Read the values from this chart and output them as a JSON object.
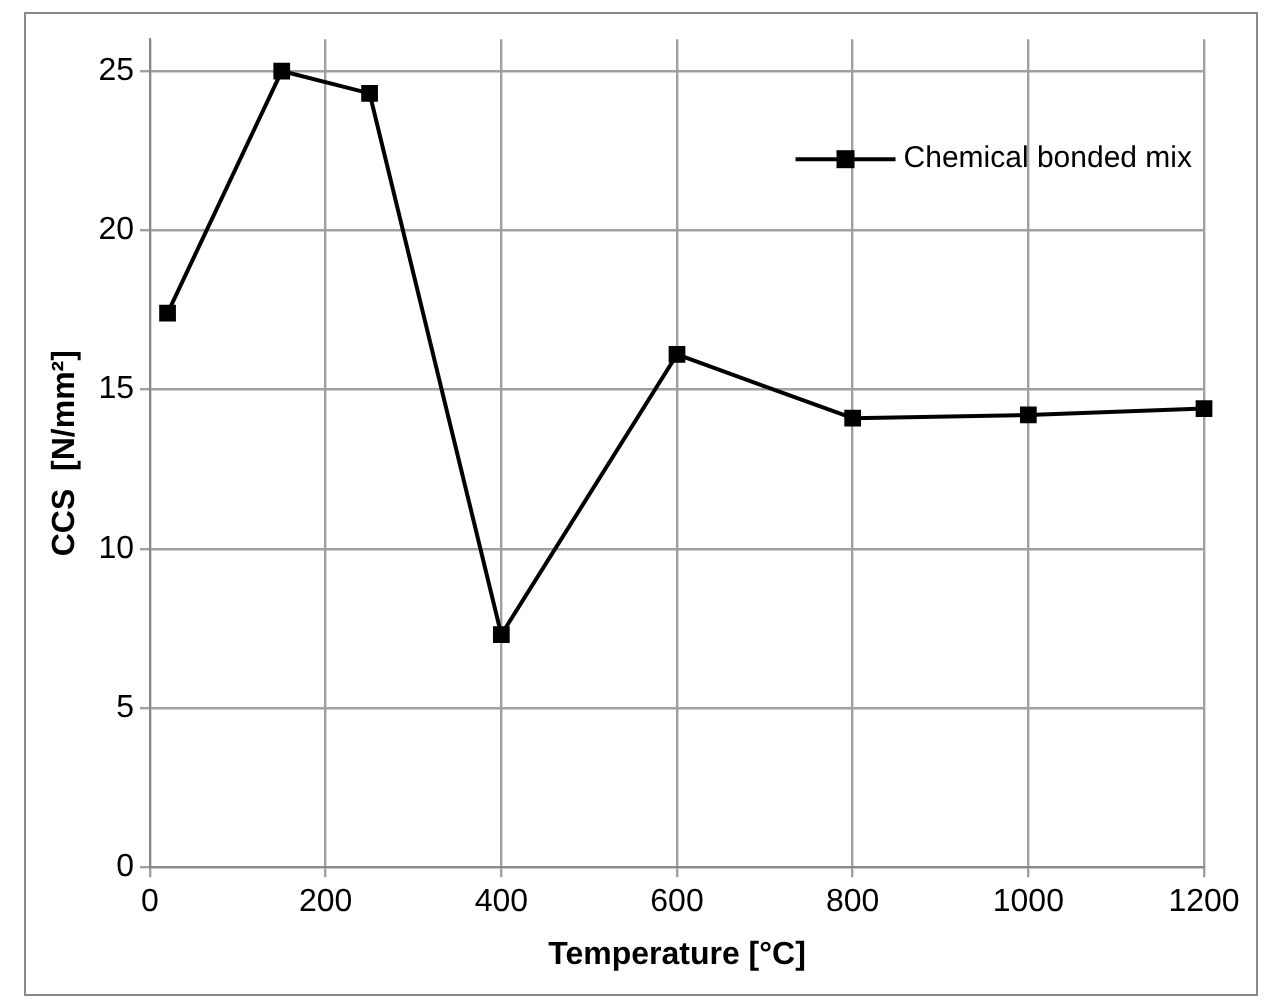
{
  "chart_data": {
    "type": "line",
    "xlabel": "Temperature [°C]",
    "ylabel": "CCS  [N/mm²]",
    "x": [
      20,
      150,
      250,
      400,
      600,
      800,
      1000,
      1200
    ],
    "series": [
      {
        "name": "Chemical bonded mix",
        "color": "#000000",
        "values": [
          17.4,
          25.0,
          24.3,
          7.3,
          16.1,
          14.1,
          14.2,
          14.4
        ]
      }
    ],
    "xlim": [
      0,
      1200
    ],
    "xticks": [
      0,
      200,
      400,
      600,
      800,
      1000,
      1200
    ],
    "ylim": [
      0,
      26
    ],
    "yticks": [
      0,
      5,
      10,
      15,
      20,
      25
    ],
    "grid": true,
    "legend": "top right",
    "marker": "square",
    "line_style": "solid"
  }
}
